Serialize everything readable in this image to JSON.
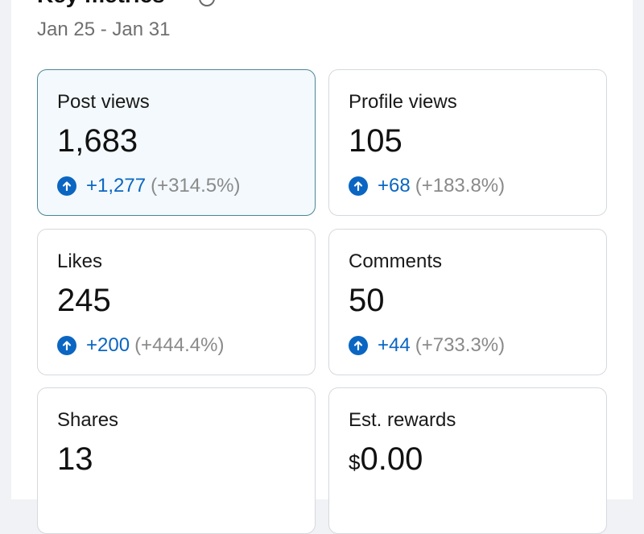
{
  "header": {
    "title": "Key metrics",
    "date_range": "Jan 25 - Jan 31"
  },
  "colors": {
    "accent": "#0a66c2",
    "selected_card_bg": "#f3f9fc",
    "selected_card_border": "#4e8597",
    "muted_text": "#8a8a8a"
  },
  "metrics": [
    {
      "label": "Post views",
      "value": "1,683",
      "change": "+1,277",
      "change_pct": "(+314.5%)",
      "selected": true
    },
    {
      "label": "Profile views",
      "value": "105",
      "change": "+68",
      "change_pct": "(+183.8%)",
      "selected": false
    },
    {
      "label": "Likes",
      "value": "245",
      "change": "+200",
      "change_pct": "(+444.4%)",
      "selected": false
    },
    {
      "label": "Comments",
      "value": "50",
      "change": "+44",
      "change_pct": "(+733.3%)",
      "selected": false
    },
    {
      "label": "Shares",
      "value": "13",
      "selected": false
    },
    {
      "label": "Est. rewards",
      "value_currency": "$",
      "value": "0.00",
      "selected": false
    }
  ]
}
